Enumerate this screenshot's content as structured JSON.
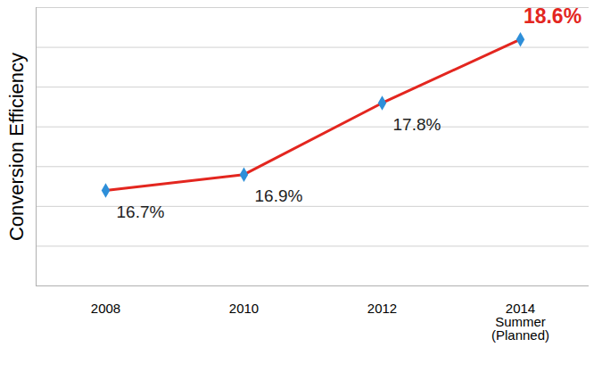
{
  "chart_data": {
    "type": "line",
    "y_label": "Conversion Efficiency",
    "categories": [
      "2008",
      "2010",
      "2012",
      "2014\nSummer\n(Planned)"
    ],
    "values": [
      16.7,
      16.9,
      17.8,
      18.6
    ],
    "value_labels": [
      "16.7%",
      "16.9%",
      "17.8%",
      "18.6%"
    ],
    "color": "#e3261f",
    "marker": "diamond",
    "ylim": [
      15.5,
      19.0
    ],
    "yticks": [
      15.5,
      16.0,
      16.5,
      17.0,
      17.5,
      18.0,
      18.5,
      19.0
    ],
    "grid": true,
    "tick_labels": "x",
    "data_labels": true
  }
}
